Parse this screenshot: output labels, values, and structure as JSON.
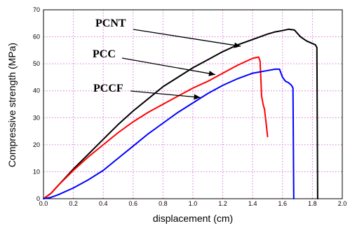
{
  "chart_data": {
    "type": "line",
    "title": "",
    "xlabel": "displacement (cm)",
    "ylabel": "Compressive strength (MPa)",
    "xlim": [
      0.0,
      2.0
    ],
    "ylim": [
      0,
      70
    ],
    "x_ticks": [
      0.0,
      0.2,
      0.4,
      0.6,
      0.8,
      1.0,
      1.2,
      1.4,
      1.6,
      1.8,
      2.0
    ],
    "x_tick_labels": [
      "0.0",
      "0.2",
      "0.4",
      "0.6",
      "0.8",
      "1.0",
      "1.2",
      "1.4",
      "1.6",
      "1.8",
      "2.0"
    ],
    "y_ticks": [
      0,
      10,
      20,
      30,
      40,
      50,
      60,
      70
    ],
    "y_tick_labels": [
      "0",
      "10",
      "20",
      "30",
      "40",
      "50",
      "60",
      "70"
    ],
    "grid": true,
    "series": [
      {
        "name": "PCNT",
        "color": "#000000",
        "x": [
          0.0,
          0.05,
          0.1,
          0.2,
          0.3,
          0.4,
          0.5,
          0.6,
          0.7,
          0.8,
          0.9,
          1.0,
          1.1,
          1.2,
          1.3,
          1.4,
          1.5,
          1.55,
          1.6,
          1.64,
          1.68,
          1.72,
          1.76,
          1.8,
          1.82,
          1.83,
          1.835
        ],
        "y": [
          0,
          2,
          5,
          11,
          16.5,
          22,
          27.5,
          32.5,
          37,
          41.5,
          45,
          48.5,
          51.5,
          54.5,
          57,
          59,
          61,
          61.8,
          62.3,
          62.8,
          62.5,
          60,
          58.5,
          57.5,
          57,
          56,
          0
        ]
      },
      {
        "name": "PCC",
        "color": "#ff0000",
        "x": [
          0.0,
          0.05,
          0.1,
          0.2,
          0.3,
          0.4,
          0.5,
          0.6,
          0.7,
          0.8,
          0.9,
          1.0,
          1.1,
          1.2,
          1.3,
          1.4,
          1.44,
          1.45,
          1.46,
          1.47,
          1.48,
          1.49,
          1.5
        ],
        "y": [
          0,
          2,
          5,
          10.5,
          15.5,
          20,
          24.5,
          28.5,
          32,
          35,
          38,
          41,
          43.5,
          46.5,
          49.5,
          52,
          52.5,
          51,
          38,
          35,
          33,
          28,
          23
        ]
      },
      {
        "name": "PCCF",
        "color": "#0000ff",
        "x": [
          0.0,
          0.05,
          0.1,
          0.2,
          0.3,
          0.4,
          0.5,
          0.6,
          0.7,
          0.8,
          0.9,
          1.0,
          1.1,
          1.2,
          1.3,
          1.4,
          1.5,
          1.55,
          1.58,
          1.6,
          1.62,
          1.64,
          1.66,
          1.67,
          1.675
        ],
        "y": [
          0,
          0.5,
          1.5,
          4,
          7,
          10.5,
          15,
          19.5,
          24,
          28,
          32,
          35.5,
          39,
          42,
          44.5,
          46.5,
          47.5,
          48,
          48,
          45,
          43.5,
          43,
          42,
          41,
          0
        ]
      }
    ],
    "annotations": [
      {
        "text": "PCNT",
        "points_to": {
          "x": 1.32,
          "y": 56.5
        }
      },
      {
        "text": "PCC",
        "points_to": {
          "x": 1.15,
          "y": 46.0
        }
      },
      {
        "text": "PCCF",
        "points_to": {
          "x": 1.05,
          "y": 37.5
        }
      }
    ]
  }
}
